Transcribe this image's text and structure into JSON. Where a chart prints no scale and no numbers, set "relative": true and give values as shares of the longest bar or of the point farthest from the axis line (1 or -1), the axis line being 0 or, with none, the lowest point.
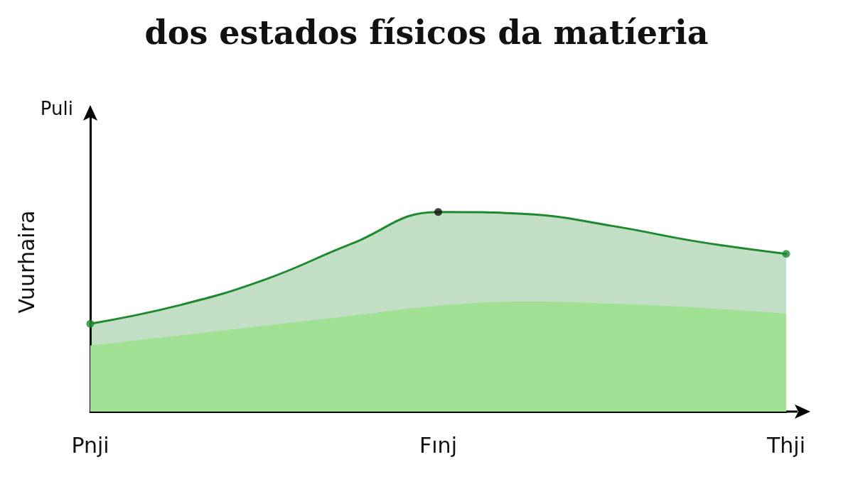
{
  "chart_data": {
    "type": "area",
    "title": "dos estados físicos da matíeria",
    "ylabel": "Vuurhaira",
    "annotations": [
      "Puli"
    ],
    "relative": true,
    "grid": false,
    "categories": [
      "Pnji",
      null,
      null,
      null,
      "Fınj",
      null,
      null,
      null,
      "Thji"
    ],
    "series": [
      {
        "color": "#1e8a2e",
        "values": [
          0.44,
          0.53,
          0.66,
          0.84,
          1,
          0.99,
          0.93,
          0.85,
          0.79
        ]
      },
      {
        "color": "#a0e092",
        "values": [
          0.33,
          0.38,
          0.43,
          0.48,
          0.53,
          0.55,
          0.54,
          0.52,
          0.49
        ]
      },
      {
        "type": "scatter",
        "marker": "circle",
        "x": [
          "Pnji",
          "Fınj",
          "Thji"
        ],
        "colors": [
          "#1e8a2e",
          "#111111",
          "#1e8a2e"
        ],
        "values": [
          0.44,
          1,
          0.79
        ]
      }
    ]
  }
}
